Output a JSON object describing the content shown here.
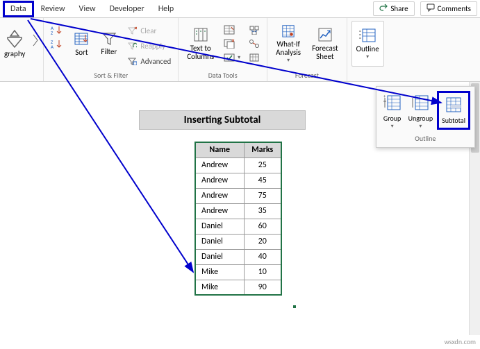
{
  "tabs": {
    "data": "Data",
    "review": "Review",
    "view": "View",
    "developer": "Developer",
    "help": "Help"
  },
  "top_right": {
    "share": "Share",
    "comments": "Comments"
  },
  "ribbon": {
    "geography_group": {
      "btn": "graphy"
    },
    "sort_filter_group": {
      "sort": "Sort",
      "filter": "Filter",
      "clear": "Clear",
      "reapply": "Reapply",
      "advanced": "Advanced",
      "label": "Sort & Filter"
    },
    "data_tools_group": {
      "text_to_columns": "Text to\nColumns",
      "label": "Data Tools"
    },
    "forecast_group": {
      "whatif": "What-If\nAnalysis",
      "forecast": "Forecast\nSheet",
      "label": "Forecast"
    },
    "outline_group": {
      "outline": "Outline",
      "label": ""
    }
  },
  "popup": {
    "group": "Group",
    "ungroup": "Ungroup",
    "subtotal": "Subtotal",
    "label": "Outline"
  },
  "content": {
    "title": "Inserting Subtotal",
    "table": {
      "headers": {
        "name": "Name",
        "marks": "Marks"
      },
      "rows": [
        {
          "name": "Andrew",
          "marks": "25"
        },
        {
          "name": "Andrew",
          "marks": "45"
        },
        {
          "name": "Andrew",
          "marks": "75"
        },
        {
          "name": "Andrew",
          "marks": "35"
        },
        {
          "name": "Daniel",
          "marks": "60"
        },
        {
          "name": "Daniel",
          "marks": "20"
        },
        {
          "name": "Daniel",
          "marks": "40"
        },
        {
          "name": "Mike",
          "marks": "10"
        },
        {
          "name": "Mike",
          "marks": "90"
        }
      ]
    }
  },
  "watermark": "wsxdn.com",
  "colors": {
    "excel_accent": "#217346",
    "highlight_border": "#0000cc",
    "gray_header": "#d9d9d9"
  }
}
